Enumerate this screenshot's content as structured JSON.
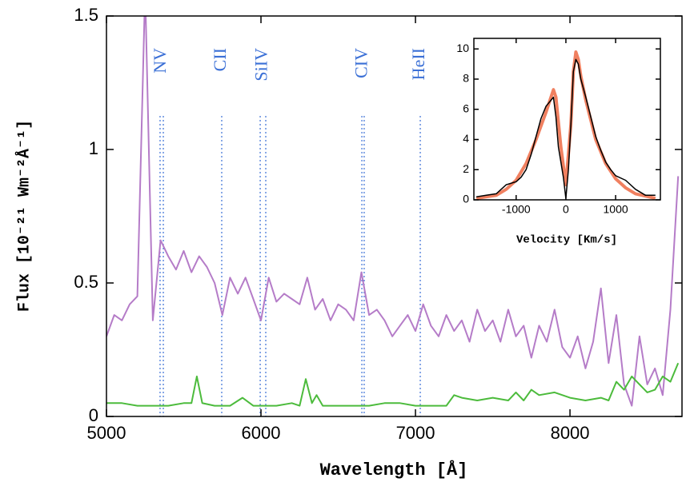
{
  "chart_data": [
    {
      "type": "line",
      "xlabel": "Wavelength [Å]",
      "ylabel": "Flux [10⁻²¹ Wm⁻²Å⁻¹]",
      "xlim": [
        5000,
        8725
      ],
      "ylim": [
        0,
        1.5
      ],
      "xticks": [
        5000,
        6000,
        7000,
        8000
      ],
      "yticks": [
        0,
        0.5,
        1,
        1.5
      ],
      "annotations": [
        {
          "text": "NV",
          "x": [
            5347,
            5368
          ]
        },
        {
          "text": "CII",
          "x": [
            5746
          ]
        },
        {
          "text": "SiIV",
          "x": [
            5995,
            6031
          ]
        },
        {
          "text": "CIV",
          "x": [
            6653,
            6668
          ]
        },
        {
          "text": "HeII",
          "x": [
            7031
          ]
        }
      ],
      "annotation_color": "#3a6fd6",
      "series": [
        {
          "color": "#b57cc8",
          "x": [
            5000,
            5050,
            5100,
            5150,
            5200,
            5250,
            5300,
            5350,
            5400,
            5450,
            5500,
            5550,
            5600,
            5650,
            5700,
            5750,
            5800,
            5850,
            5900,
            5950,
            6000,
            6050,
            6100,
            6150,
            6200,
            6250,
            6300,
            6350,
            6400,
            6450,
            6500,
            6550,
            6600,
            6650,
            6700,
            6750,
            6800,
            6850,
            6900,
            6950,
            7000,
            7050,
            7100,
            7150,
            7200,
            7250,
            7300,
            7350,
            7400,
            7450,
            7500,
            7550,
            7600,
            7650,
            7700,
            7750,
            7800,
            7850,
            7900,
            7950,
            8000,
            8050,
            8100,
            8150,
            8200,
            8250,
            8300,
            8350,
            8400,
            8450,
            8500,
            8550,
            8600,
            8650,
            8700
          ],
          "values": [
            0.3,
            0.38,
            0.36,
            0.42,
            0.45,
            1.6,
            0.36,
            0.66,
            0.6,
            0.55,
            0.62,
            0.54,
            0.6,
            0.56,
            0.5,
            0.38,
            0.52,
            0.46,
            0.52,
            0.44,
            0.36,
            0.52,
            0.43,
            0.46,
            0.44,
            0.42,
            0.52,
            0.4,
            0.44,
            0.36,
            0.42,
            0.4,
            0.36,
            0.54,
            0.38,
            0.4,
            0.36,
            0.3,
            0.34,
            0.38,
            0.32,
            0.42,
            0.34,
            0.3,
            0.38,
            0.32,
            0.36,
            0.28,
            0.4,
            0.32,
            0.36,
            0.28,
            0.4,
            0.3,
            0.34,
            0.22,
            0.34,
            0.28,
            0.4,
            0.26,
            0.22,
            0.3,
            0.18,
            0.28,
            0.48,
            0.2,
            0.38,
            0.12,
            0.04,
            0.3,
            0.12,
            0.18,
            0.08,
            0.4,
            0.9
          ]
        },
        {
          "color": "#4cbb3c",
          "x": [
            5000,
            5100,
            5200,
            5300,
            5400,
            5500,
            5550,
            5585,
            5620,
            5700,
            5800,
            5880,
            5950,
            6100,
            6200,
            6250,
            6290,
            6330,
            6360,
            6400,
            6500,
            6600,
            6700,
            6800,
            6900,
            7000,
            7100,
            7200,
            7250,
            7300,
            7400,
            7500,
            7600,
            7650,
            7700,
            7750,
            7800,
            7900,
            8000,
            8100,
            8200,
            8250,
            8300,
            8350,
            8400,
            8450,
            8500,
            8550,
            8600,
            8650,
            8700
          ],
          "values": [
            0.05,
            0.05,
            0.04,
            0.04,
            0.04,
            0.05,
            0.05,
            0.15,
            0.05,
            0.04,
            0.04,
            0.07,
            0.04,
            0.04,
            0.05,
            0.04,
            0.14,
            0.05,
            0.08,
            0.04,
            0.04,
            0.04,
            0.04,
            0.05,
            0.05,
            0.04,
            0.04,
            0.04,
            0.08,
            0.07,
            0.06,
            0.07,
            0.06,
            0.09,
            0.06,
            0.1,
            0.08,
            0.09,
            0.07,
            0.06,
            0.07,
            0.06,
            0.13,
            0.1,
            0.15,
            0.12,
            0.09,
            0.1,
            0.15,
            0.13,
            0.2
          ]
        }
      ]
    },
    {
      "type": "line",
      "xlabel": "Velocity [Km/s]",
      "xlim": [
        -1850,
        1900
      ],
      "ylim": [
        0,
        10.7
      ],
      "xticks": [
        -1000,
        0,
        1000
      ],
      "yticks": [
        0,
        2,
        4,
        6,
        8,
        10
      ],
      "series": [
        {
          "color": "#f08060",
          "width": 4,
          "x": [
            -1800,
            -1400,
            -1200,
            -1000,
            -800,
            -600,
            -400,
            -300,
            -250,
            -200,
            -100,
            0,
            100,
            150,
            200,
            250,
            300,
            400,
            600,
            800,
            1000,
            1200,
            1400,
            1800
          ],
          "values": [
            0.1,
            0.3,
            0.7,
            1.3,
            2.4,
            4.0,
            5.8,
            6.8,
            7.3,
            6.8,
            3.5,
            1.0,
            5.0,
            8.5,
            9.8,
            9.3,
            8.2,
            6.6,
            4.0,
            2.4,
            1.4,
            0.8,
            0.4,
            0.1
          ]
        },
        {
          "color": "#000000",
          "width": 1.5,
          "x": [
            -1800,
            -1600,
            -1400,
            -1200,
            -1000,
            -900,
            -800,
            -700,
            -600,
            -500,
            -400,
            -300,
            -250,
            -200,
            -150,
            -100,
            -50,
            0,
            50,
            100,
            150,
            200,
            250,
            300,
            400,
            500,
            600,
            700,
            800,
            900,
            1000,
            1200,
            1400,
            1600,
            1800
          ],
          "values": [
            0.2,
            0.3,
            0.4,
            1.0,
            1.2,
            1.5,
            2.0,
            3.0,
            4.2,
            5.4,
            6.2,
            6.6,
            6.8,
            5.5,
            3.5,
            2.5,
            1.5,
            0.1,
            2.0,
            5.0,
            8.5,
            9.3,
            9.0,
            8.0,
            6.8,
            5.5,
            4.2,
            3.3,
            2.5,
            2.0,
            1.6,
            1.3,
            0.7,
            0.3,
            0.3
          ]
        }
      ]
    }
  ]
}
